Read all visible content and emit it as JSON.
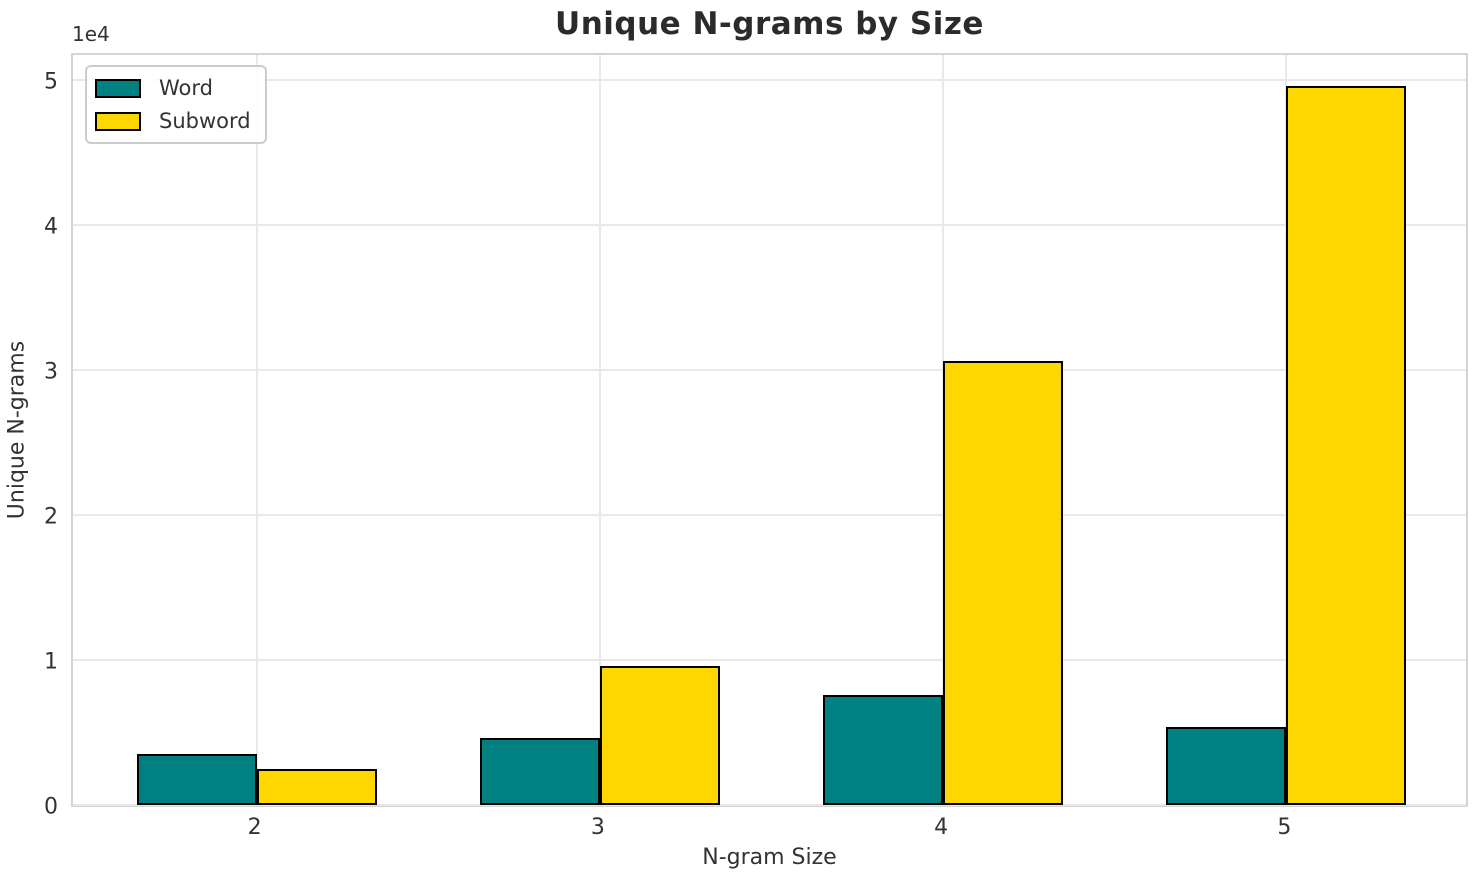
{
  "figure": {
    "title": "Unique N-grams by Size",
    "xlabel": "N-gram Size",
    "ylabel": "Unique N-grams",
    "y_offset_label": "1e4"
  },
  "legend": {
    "position": "upper left",
    "items": [
      {
        "label": "Word",
        "color": "#008080"
      },
      {
        "label": "Subword",
        "color": "#ffd700"
      }
    ]
  },
  "chart_data": {
    "type": "bar",
    "title": "Unique N-grams by Size",
    "xlabel": "N-gram Size",
    "ylabel": "Unique N-grams",
    "categories": [
      "2",
      "3",
      "4",
      "5"
    ],
    "x_positions": [
      2,
      3,
      4,
      5
    ],
    "series": [
      {
        "name": "Word",
        "color": "#008080",
        "values": [
          3500,
          4600,
          7600,
          5400
        ]
      },
      {
        "name": "Subword",
        "color": "#ffd700",
        "values": [
          2500,
          9600,
          30600,
          49600
        ]
      }
    ],
    "ylim": [
      0,
      52000
    ],
    "xlim": [
      1.465,
      5.535
    ],
    "yticks": [
      0,
      10000,
      20000,
      30000,
      40000,
      50000
    ],
    "ytick_labels": [
      "0",
      "1",
      "2",
      "3",
      "4",
      "5"
    ],
    "y_offset_text": "1e4",
    "bar_width_per_series": 0.35,
    "bar_edge_color": "#000000",
    "grid": true,
    "legend_position": "upper left"
  },
  "style": {
    "grid_color": "#e9e9e9",
    "spine_color": "#d4d4d4",
    "text_color": "#333333",
    "title_color": "#2b2b2b",
    "background": "#ffffff"
  }
}
